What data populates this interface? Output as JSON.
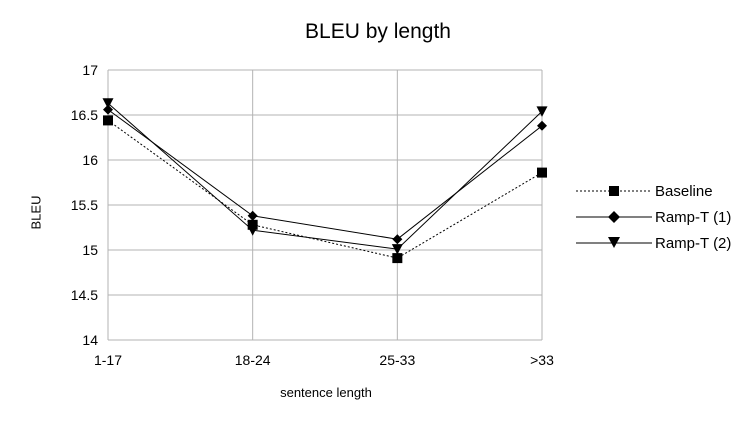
{
  "chart_data": {
    "type": "line",
    "title": "BLEU by length",
    "xlabel": "sentence length",
    "ylabel": "BLEU",
    "categories": [
      "1-17",
      "18-24",
      "25-33",
      ">33"
    ],
    "ylim": [
      14,
      17
    ],
    "yticks": [
      "14",
      "14.5",
      "15",
      "15.5",
      "16",
      "16.5",
      "17"
    ],
    "grid": true,
    "legend_position": "right",
    "series": [
      {
        "name": "Baseline",
        "values": [
          16.44,
          15.28,
          14.91,
          15.86
        ],
        "marker": "square",
        "line": "dotted"
      },
      {
        "name": "Ramp-T (1)",
        "values": [
          16.56,
          15.38,
          15.12,
          16.38
        ],
        "marker": "diamond",
        "line": "solid"
      },
      {
        "name": "Ramp-T (2)",
        "values": [
          16.63,
          15.22,
          15.01,
          16.54
        ],
        "marker": "triangle-down",
        "line": "solid"
      }
    ]
  }
}
